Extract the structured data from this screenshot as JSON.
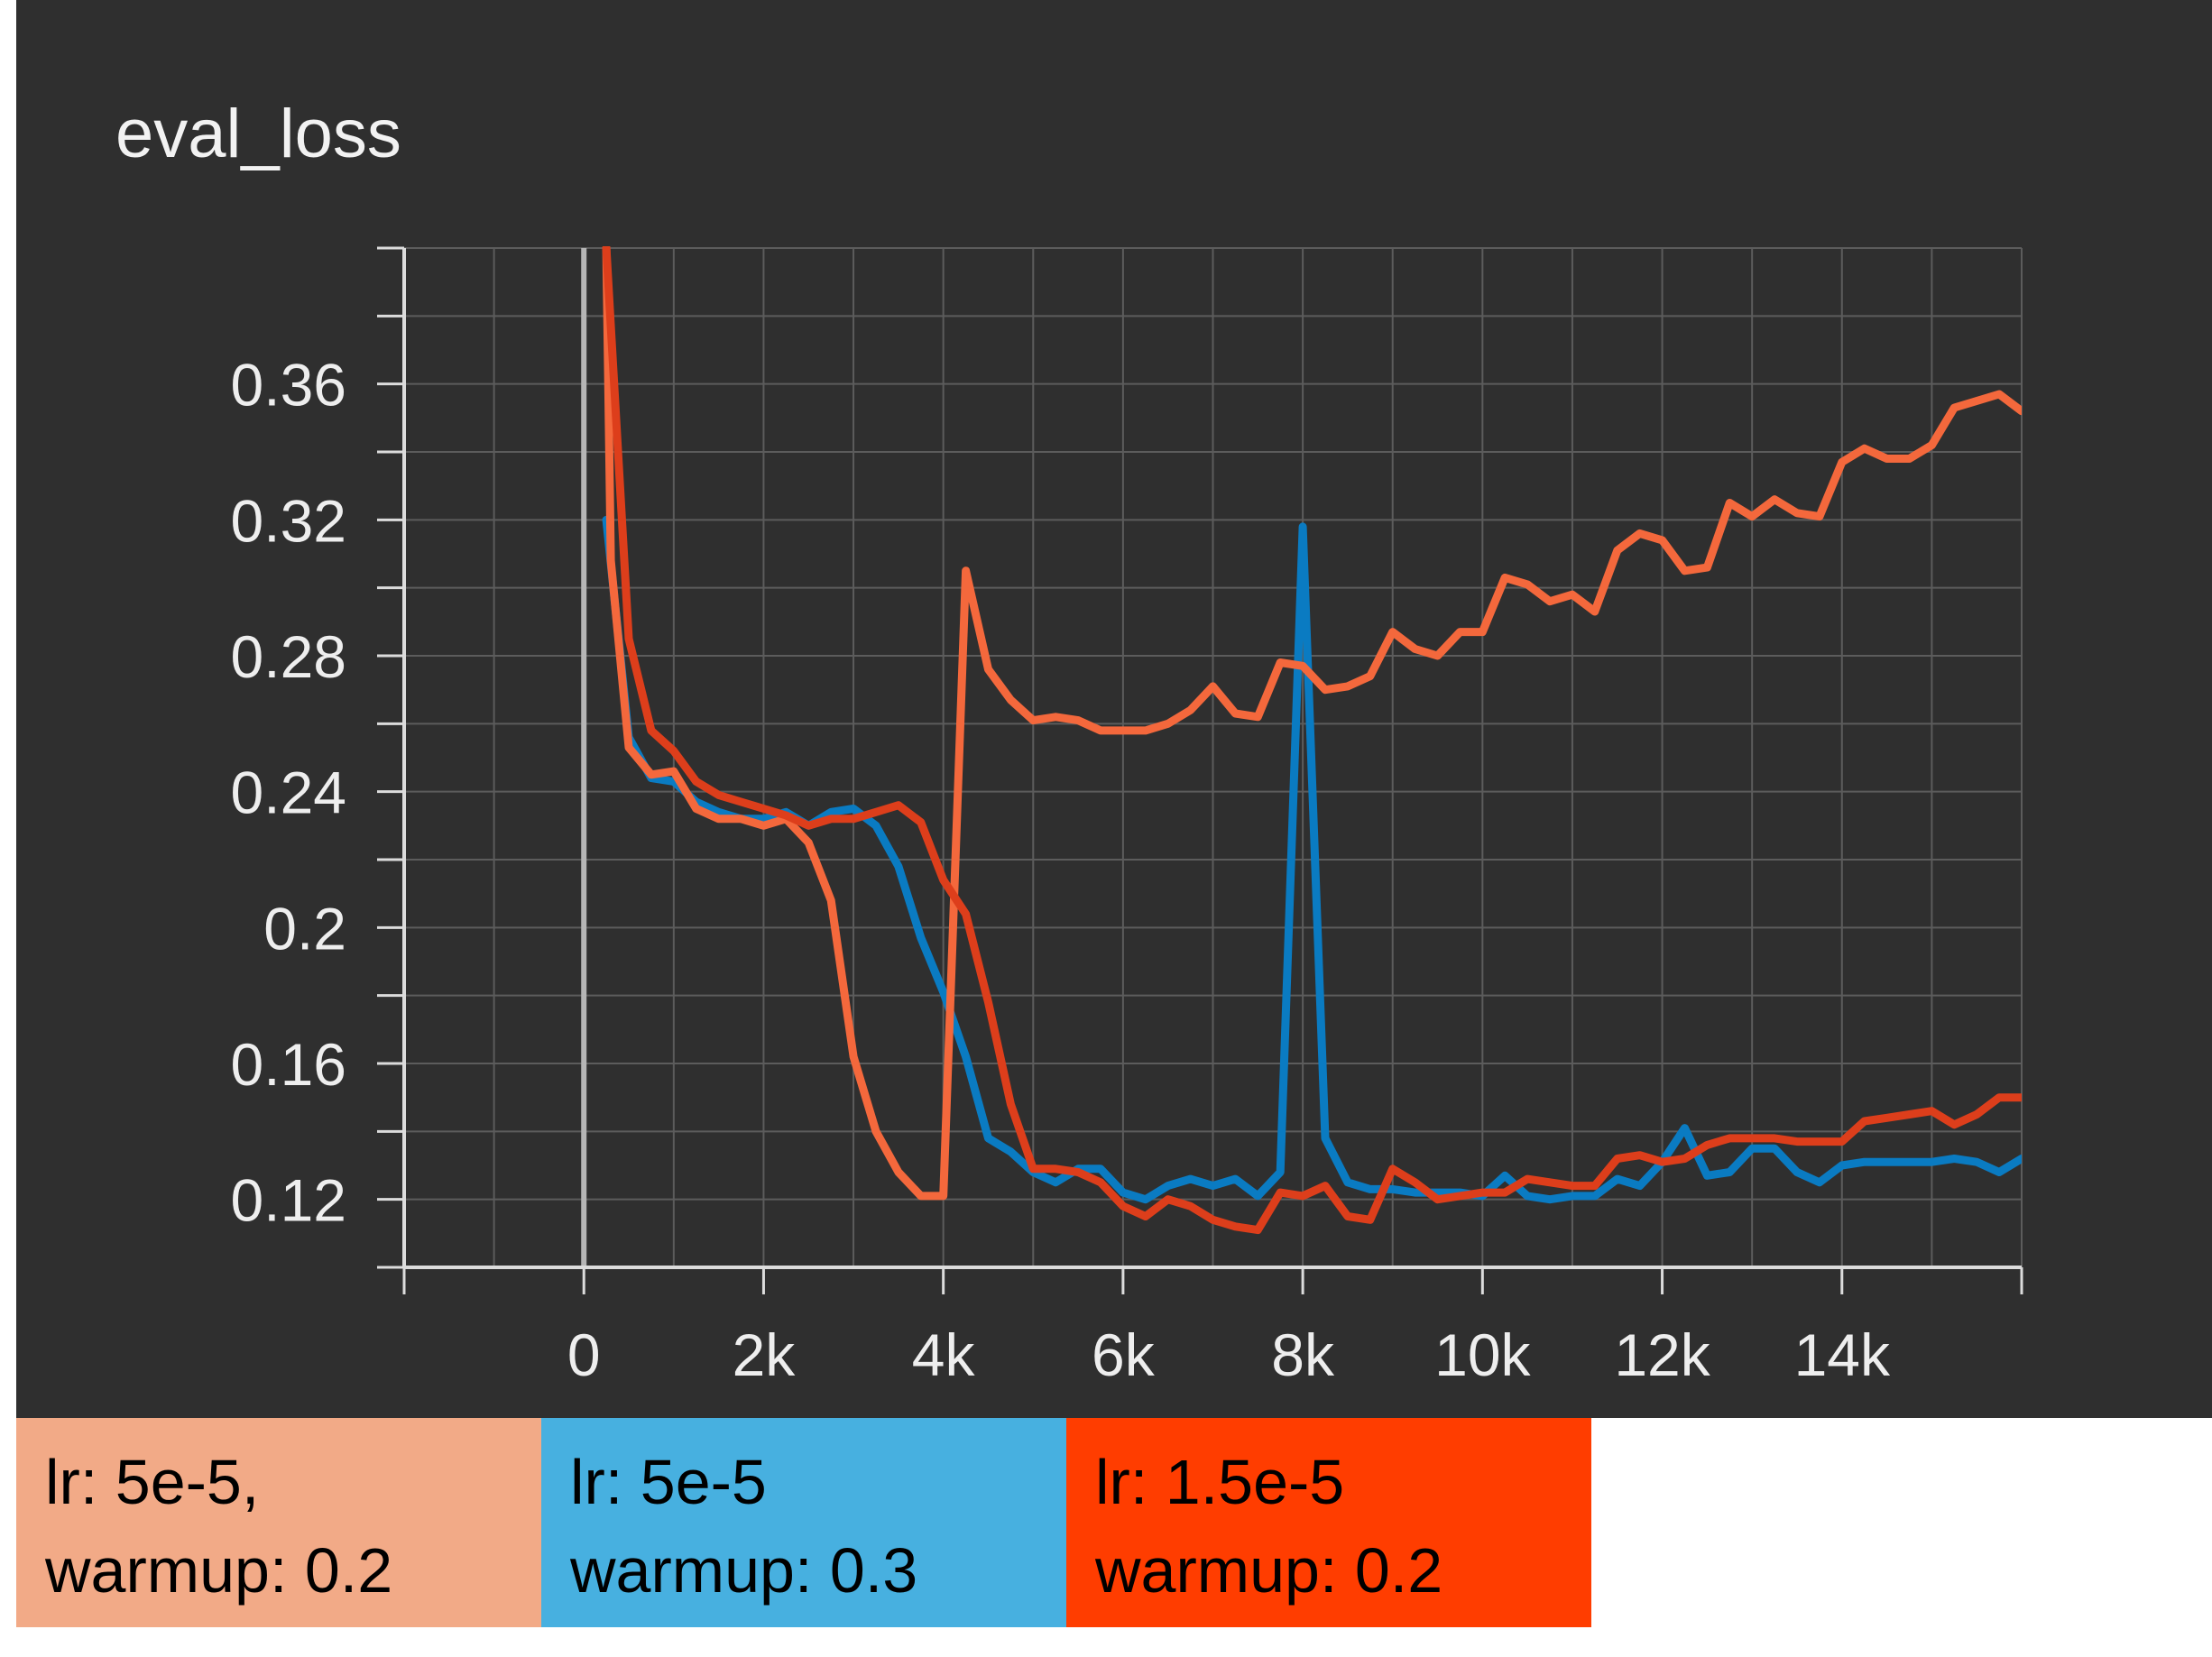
{
  "chart_data": {
    "type": "line",
    "title": "eval_loss",
    "xlabel": "",
    "ylabel": "",
    "xlim": [
      -2000,
      16000
    ],
    "ylim": [
      0.1,
      0.4
    ],
    "x_ticks": [
      0,
      2000,
      4000,
      6000,
      8000,
      10000,
      12000,
      14000
    ],
    "x_tick_labels": [
      "0",
      "2k",
      "4k",
      "6k",
      "8k",
      "10k",
      "12k",
      "14k"
    ],
    "y_ticks": [
      0.12,
      0.16,
      0.2,
      0.24,
      0.28,
      0.32,
      0.36
    ],
    "y_tick_labels": [
      "0.12",
      "0.16",
      "0.2",
      "0.24",
      "0.28",
      "0.32",
      "0.36"
    ],
    "grid": true,
    "legend_position": "bottom",
    "series": [
      {
        "name": "lr: 5e-5, warmup: 0.2",
        "legend_lines": [
          "lr: 5e-5,",
          "warmup: 0.2"
        ],
        "color": "#f4683c",
        "legend_color": "#f2aa87",
        "x": [
          250,
          300,
          500,
          750,
          1000,
          1250,
          1500,
          1750,
          2000,
          2250,
          2500,
          2750,
          3000,
          3250,
          3500,
          3750,
          4000,
          4250,
          4500,
          4750,
          5000,
          5250,
          5500,
          5750,
          6000,
          6250,
          6500,
          6750,
          7000,
          7250,
          7500,
          7750,
          8000,
          8250,
          8500,
          8750,
          9000,
          9250,
          9500,
          9750,
          10000,
          10250,
          10500,
          10750,
          11000,
          11250,
          11500,
          11750,
          12000,
          12250,
          12500,
          12750,
          13000,
          13250,
          13500,
          13750,
          14000,
          14250,
          14500,
          14750,
          15000,
          15250,
          15500,
          15750,
          16000
        ],
        "values": [
          0.4,
          0.308,
          0.253,
          0.245,
          0.246,
          0.235,
          0.232,
          0.232,
          0.23,
          0.232,
          0.225,
          0.208,
          0.162,
          0.14,
          0.128,
          0.121,
          0.121,
          0.305,
          0.276,
          0.267,
          0.261,
          0.262,
          0.261,
          0.258,
          0.258,
          0.258,
          0.26,
          0.264,
          0.271,
          0.263,
          0.262,
          0.278,
          0.277,
          0.27,
          0.271,
          0.274,
          0.287,
          0.282,
          0.28,
          0.287,
          0.287,
          0.303,
          0.301,
          0.296,
          0.298,
          0.293,
          0.311,
          0.316,
          0.314,
          0.305,
          0.306,
          0.325,
          0.321,
          0.326,
          0.322,
          0.321,
          0.337,
          0.341,
          0.338,
          0.338,
          0.342,
          0.353,
          0.355,
          0.357,
          0.352
        ]
      },
      {
        "name": "lr: 5e-5 warmup: 0.3",
        "legend_lines": [
          "lr: 5e-5",
          "warmup: 0.3"
        ],
        "color": "#0a7bc2",
        "legend_color": "#47b0e0",
        "x": [
          250,
          500,
          750,
          1000,
          1250,
          1500,
          1750,
          2000,
          2250,
          2500,
          2750,
          3000,
          3250,
          3500,
          3750,
          4000,
          4250,
          4500,
          4750,
          5000,
          5250,
          5500,
          5750,
          6000,
          6250,
          6500,
          6750,
          7000,
          7250,
          7500,
          7750,
          8000,
          8250,
          8500,
          8750,
          9000,
          9250,
          9500,
          9750,
          10000,
          10250,
          10500,
          10750,
          11000,
          11250,
          11500,
          11750,
          12000,
          12250,
          12500,
          12750,
          13000,
          13250,
          13500,
          13750,
          14000,
          14250,
          14500,
          14750,
          15000,
          15250,
          15500,
          15750,
          16000
        ],
        "values": [
          0.32,
          0.256,
          0.244,
          0.243,
          0.237,
          0.234,
          0.232,
          0.232,
          0.234,
          0.23,
          0.234,
          0.235,
          0.23,
          0.218,
          0.197,
          0.181,
          0.162,
          0.138,
          0.134,
          0.128,
          0.125,
          0.129,
          0.129,
          0.122,
          0.12,
          0.124,
          0.126,
          0.124,
          0.126,
          0.121,
          0.128,
          0.318,
          0.138,
          0.125,
          0.123,
          0.123,
          0.122,
          0.122,
          0.122,
          0.121,
          0.127,
          0.121,
          0.12,
          0.121,
          0.121,
          0.126,
          0.124,
          0.131,
          0.141,
          0.127,
          0.128,
          0.135,
          0.135,
          0.128,
          0.125,
          0.13,
          0.131,
          0.131,
          0.131,
          0.131,
          0.132,
          0.131,
          0.128,
          0.132
        ]
      },
      {
        "name": "lr: 1.5e-5 warmup: 0.2",
        "legend_lines": [
          "lr: 1.5e-5",
          "warmup: 0.2"
        ],
        "color": "#dd3e1b",
        "legend_color": "#ff3d00",
        "x": [
          250,
          500,
          750,
          1000,
          1250,
          1500,
          1750,
          2000,
          2250,
          2500,
          2750,
          3000,
          3250,
          3500,
          3750,
          4000,
          4250,
          4500,
          4750,
          5000,
          5250,
          5500,
          5750,
          6000,
          6250,
          6500,
          6750,
          7000,
          7250,
          7500,
          7750,
          8000,
          8250,
          8500,
          8750,
          9000,
          9250,
          9500,
          9750,
          10000,
          10250,
          10500,
          10750,
          11000,
          11250,
          11500,
          11750,
          12000,
          12250,
          12500,
          12750,
          13000,
          13250,
          13500,
          13750,
          14000,
          14250,
          14500,
          14750,
          15000,
          15250,
          15500,
          15750,
          16000
        ],
        "values": [
          0.4,
          0.285,
          0.258,
          0.252,
          0.243,
          0.239,
          0.237,
          0.235,
          0.233,
          0.23,
          0.232,
          0.232,
          0.234,
          0.236,
          0.231,
          0.214,
          0.204,
          0.178,
          0.148,
          0.129,
          0.129,
          0.128,
          0.125,
          0.118,
          0.115,
          0.12,
          0.118,
          0.114,
          0.112,
          0.111,
          0.122,
          0.121,
          0.124,
          0.115,
          0.114,
          0.129,
          0.125,
          0.12,
          0.121,
          0.122,
          0.122,
          0.126,
          0.125,
          0.124,
          0.124,
          0.132,
          0.133,
          0.131,
          0.132,
          0.136,
          0.138,
          0.138,
          0.138,
          0.137,
          0.137,
          0.137,
          0.143,
          0.144,
          0.145,
          0.146,
          0.142,
          0.145,
          0.15,
          0.15
        ]
      }
    ]
  }
}
